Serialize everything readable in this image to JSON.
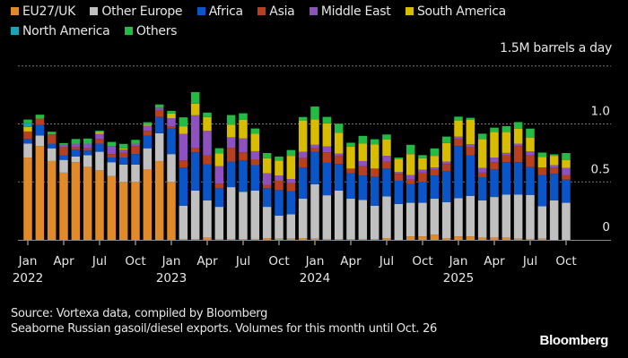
{
  "chart_data": {
    "type": "bar",
    "stacked": true,
    "unit_label": "1.5M barrels a day",
    "ylabel": "Million barrels a day",
    "ylim": [
      0,
      1.5
    ],
    "yticks": [
      {
        "value": 0,
        "label": "0"
      },
      {
        "value": 0.5,
        "label": "0.5"
      },
      {
        "value": 1.0,
        "label": "1.0"
      },
      {
        "value": 1.5,
        "label": "1.5M barrels a day"
      }
    ],
    "grid": true,
    "legend_position": "top-left",
    "x_tick_labels": [
      {
        "month_index": 0,
        "month": "Jan",
        "year": "2022"
      },
      {
        "month_index": 3,
        "month": "Apr",
        "year": ""
      },
      {
        "month_index": 6,
        "month": "Jul",
        "year": ""
      },
      {
        "month_index": 9,
        "month": "Oct",
        "year": ""
      },
      {
        "month_index": 12,
        "month": "Jan",
        "year": "2023"
      },
      {
        "month_index": 15,
        "month": "Apr",
        "year": ""
      },
      {
        "month_index": 18,
        "month": "Jul",
        "year": ""
      },
      {
        "month_index": 21,
        "month": "Oct",
        "year": ""
      },
      {
        "month_index": 24,
        "month": "Jan",
        "year": "2024"
      },
      {
        "month_index": 27,
        "month": "Apr",
        "year": ""
      },
      {
        "month_index": 30,
        "month": "Jul",
        "year": ""
      },
      {
        "month_index": 33,
        "month": "Oct",
        "year": ""
      },
      {
        "month_index": 36,
        "month": "Jan",
        "year": "2025"
      },
      {
        "month_index": 39,
        "month": "Apr",
        "year": ""
      },
      {
        "month_index": 42,
        "month": "Jul",
        "year": ""
      },
      {
        "month_index": 45,
        "month": "Oct",
        "year": ""
      }
    ],
    "categories": [
      "Jan 2022",
      "Feb 2022",
      "Mar 2022",
      "Apr 2022",
      "May 2022",
      "Jun 2022",
      "Jul 2022",
      "Aug 2022",
      "Sep 2022",
      "Oct 2022",
      "Nov 2022",
      "Dec 2022",
      "Jan 2023",
      "Feb 2023",
      "Mar 2023",
      "Apr 2023",
      "May 2023",
      "Jun 2023",
      "Jul 2023",
      "Aug 2023",
      "Sep 2023",
      "Oct 2023",
      "Nov 2023",
      "Dec 2023",
      "Jan 2024",
      "Feb 2024",
      "Mar 2024",
      "Apr 2024",
      "May 2024",
      "Jun 2024",
      "Jul 2024",
      "Aug 2024",
      "Sep 2024",
      "Oct 2024",
      "Nov 2024",
      "Dec 2024",
      "Jan 2025",
      "Feb 2025",
      "Mar 2025",
      "Apr 2025",
      "May 2025",
      "Jun 2025",
      "Jul 2025",
      "Aug 2025",
      "Sep 2025",
      "Oct 2025"
    ],
    "series": [
      {
        "name": "EU27/UK",
        "color": "#e08a2a",
        "values": [
          0.71,
          0.81,
          0.68,
          0.58,
          0.67,
          0.63,
          0.6,
          0.55,
          0.5,
          0.5,
          0.61,
          0.68,
          0.5,
          0.005,
          0.005,
          0.02,
          0.005,
          0.005,
          0.005,
          0.005,
          0.015,
          0.01,
          0.01,
          0.015,
          0.01,
          0.005,
          0.005,
          0.005,
          0.005,
          0.005,
          0.015,
          0.0,
          0.03,
          0.03,
          0.045,
          0.015,
          0.03,
          0.03,
          0.02,
          0.02,
          0.02,
          0.01,
          0.008,
          0.01,
          0.0,
          0.0
        ]
      },
      {
        "name": "Other Europe",
        "color": "#c0c0c0",
        "values": [
          0.12,
          0.09,
          0.11,
          0.11,
          0.05,
          0.1,
          0.16,
          0.12,
          0.15,
          0.15,
          0.18,
          0.24,
          0.24,
          0.29,
          0.42,
          0.32,
          0.28,
          0.45,
          0.41,
          0.42,
          0.27,
          0.2,
          0.21,
          0.34,
          0.47,
          0.38,
          0.42,
          0.35,
          0.34,
          0.29,
          0.36,
          0.31,
          0.29,
          0.29,
          0.31,
          0.31,
          0.33,
          0.35,
          0.32,
          0.35,
          0.37,
          0.38,
          0.38,
          0.28,
          0.34,
          0.32
        ]
      },
      {
        "name": "Africa",
        "color": "#0a55c8",
        "values": [
          0.04,
          0.09,
          0.04,
          0.04,
          0.06,
          0.04,
          0.07,
          0.04,
          0.06,
          0.09,
          0.11,
          0.14,
          0.22,
          0.33,
          0.33,
          0.31,
          0.16,
          0.22,
          0.27,
          0.22,
          0.16,
          0.22,
          0.2,
          0.27,
          0.28,
          0.28,
          0.23,
          0.22,
          0.21,
          0.25,
          0.24,
          0.2,
          0.16,
          0.18,
          0.2,
          0.27,
          0.45,
          0.35,
          0.2,
          0.24,
          0.28,
          0.28,
          0.24,
          0.27,
          0.23,
          0.2
        ]
      },
      {
        "name": "Asia",
        "color": "#b8401e",
        "values": [
          0.065,
          0.056,
          0.08,
          0.07,
          0.02,
          0.02,
          0.04,
          0.03,
          0.04,
          0.07,
          0.04,
          0.06,
          0.02,
          0.06,
          0.04,
          0.08,
          0.04,
          0.12,
          0.07,
          0.05,
          0.03,
          0.08,
          0.07,
          0.08,
          0.03,
          0.09,
          0.07,
          0.04,
          0.08,
          0.07,
          0.06,
          0.06,
          0.04,
          0.08,
          0.05,
          0.06,
          0.06,
          0.07,
          0.04,
          0.06,
          0.06,
          0.14,
          0.1,
          0.06,
          0.05,
          0.04
        ]
      },
      {
        "name": "Middle East",
        "color": "#8e52c0",
        "values": [
          0.0,
          0.0,
          0.0,
          0.02,
          0.03,
          0.04,
          0.045,
          0.07,
          0.03,
          0.02,
          0.045,
          0.02,
          0.07,
          0.23,
          0.28,
          0.21,
          0.15,
          0.09,
          0.12,
          0.07,
          0.1,
          0.045,
          0.035,
          0.055,
          0.03,
          0.05,
          0.02,
          0.0,
          0.045,
          0.0,
          0.05,
          0.015,
          0.04,
          0.025,
          0.02,
          0.02,
          0.02,
          0.025,
          0.04,
          0.04,
          0.02,
          0.02,
          0.035,
          0.005,
          0.025,
          0.06
        ]
      },
      {
        "name": "South America",
        "color": "#d8bc00",
        "values": [
          0.04,
          0.0,
          0.0,
          0.0,
          0.0,
          0.0,
          0.015,
          0.0,
          0.01,
          0.0,
          0.01,
          0.0,
          0.04,
          0.065,
          0.1,
          0.12,
          0.11,
          0.11,
          0.16,
          0.15,
          0.13,
          0.13,
          0.2,
          0.27,
          0.22,
          0.2,
          0.18,
          0.19,
          0.15,
          0.21,
          0.14,
          0.11,
          0.18,
          0.1,
          0.1,
          0.16,
          0.14,
          0.21,
          0.25,
          0.22,
          0.18,
          0.13,
          0.12,
          0.09,
          0.08,
          0.07
        ]
      },
      {
        "name": "North America",
        "color": "#1aa3b5",
        "values": [
          0.03,
          0.0,
          0.0,
          0.0,
          0.0,
          0.0,
          0.0,
          0.0,
          0.0,
          0.0,
          0.0,
          0.0,
          0.0,
          0.0,
          0.0,
          0.0,
          0.0,
          0.0,
          0.0,
          0.0,
          0.0,
          0.0,
          0.0,
          0.0,
          0.0,
          0.0,
          0.0,
          0.0,
          0.0,
          0.0,
          0.0,
          0.0,
          0.0,
          0.0,
          0.0,
          0.0,
          0.0,
          0.0,
          0.0,
          0.0,
          0.0,
          0.0,
          0.0,
          0.0,
          0.0,
          0.0
        ]
      },
      {
        "name": "Others",
        "color": "#22bb44",
        "values": [
          0.033,
          0.034,
          0.023,
          0.015,
          0.04,
          0.044,
          0.012,
          0.035,
          0.038,
          0.033,
          0.02,
          0.028,
          0.023,
          0.077,
          0.1,
          0.038,
          0.046,
          0.082,
          0.057,
          0.046,
          0.044,
          0.034,
          0.05,
          0.03,
          0.11,
          0.056,
          0.077,
          0.033,
          0.067,
          0.043,
          0.044,
          0.015,
          0.08,
          0.026,
          0.064,
          0.056,
          0.033,
          0.018,
          0.046,
          0.038,
          0.051,
          0.056,
          0.077,
          0.038,
          0.013,
          0.059
        ]
      }
    ]
  },
  "legend_rows": [
    [
      "EU27/UK",
      "Other Europe",
      "Africa",
      "Asia",
      "Middle East",
      "South America"
    ],
    [
      "North America",
      "Others"
    ]
  ],
  "footer": {
    "source": "Source: Vortexa data, compiled by Bloomberg",
    "note": "Seaborne Russian gasoil/diesel exports. Volumes for this month until Oct. 26"
  },
  "brand": "Bloomberg"
}
